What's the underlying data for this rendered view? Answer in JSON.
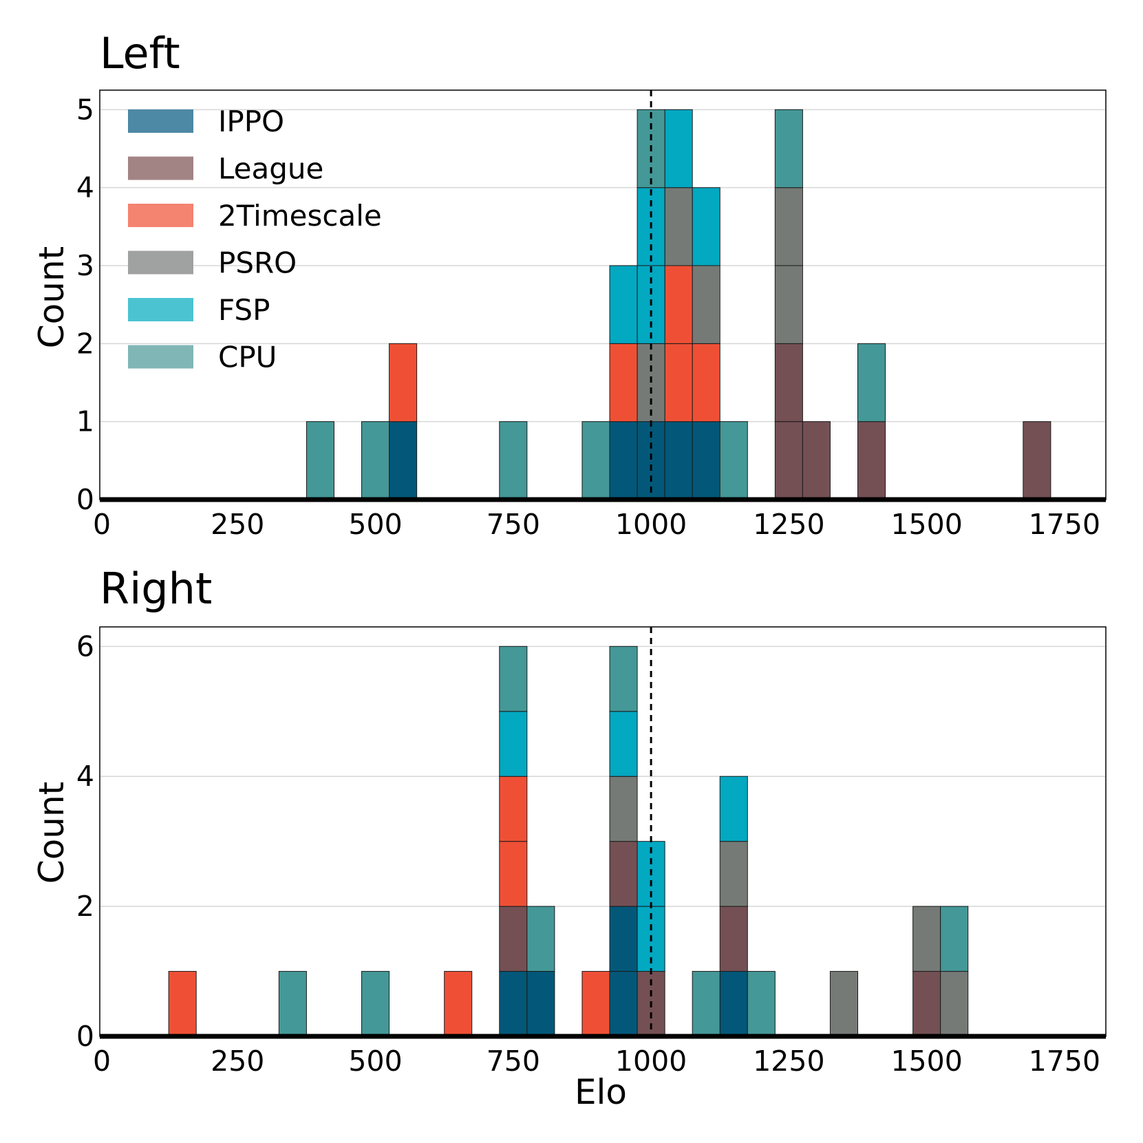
{
  "chart_data": [
    {
      "type": "bar",
      "stacked": true,
      "title": "Left",
      "xlabel": "",
      "ylabel": "Count",
      "xlim": [
        0,
        1825
      ],
      "ylim": [
        0,
        5.25
      ],
      "yticks": [
        0,
        1,
        2,
        3,
        4,
        5
      ],
      "xticks": [
        0,
        250,
        500,
        750,
        1000,
        1250,
        1500,
        1750
      ],
      "reference_line_x": 1000,
      "grid": "horizontal",
      "legend_position": "top-left",
      "bin_width": 50,
      "series": [
        {
          "name": "IPPO",
          "bins": [
            [
              525,
              1
            ],
            [
              925,
              1
            ],
            [
              975,
              1
            ],
            [
              1025,
              1
            ],
            [
              1075,
              1
            ]
          ]
        },
        {
          "name": "League",
          "bins": [
            [
              1225,
              2
            ],
            [
              1275,
              1
            ],
            [
              1375,
              1
            ],
            [
              1675,
              1
            ]
          ]
        },
        {
          "name": "2Timescale",
          "bins": [
            [
              525,
              1
            ],
            [
              925,
              1
            ],
            [
              1025,
              2
            ],
            [
              1075,
              1
            ]
          ]
        },
        {
          "name": "PSRO",
          "bins": [
            [
              975,
              1
            ],
            [
              1025,
              1
            ],
            [
              1075,
              1
            ],
            [
              1225,
              2
            ]
          ]
        },
        {
          "name": "FSP",
          "bins": [
            [
              925,
              1
            ],
            [
              975,
              2
            ],
            [
              1025,
              1
            ],
            [
              1075,
              1
            ]
          ]
        },
        {
          "name": "CPU",
          "bins": [
            [
              375,
              1
            ],
            [
              475,
              1
            ],
            [
              725,
              1
            ],
            [
              875,
              1
            ],
            [
              975,
              1
            ],
            [
              1125,
              1
            ],
            [
              1225,
              1
            ],
            [
              1375,
              1
            ]
          ]
        }
      ]
    },
    {
      "type": "bar",
      "stacked": true,
      "title": "Right",
      "xlabel": "Elo",
      "ylabel": "Count",
      "xlim": [
        0,
        1825
      ],
      "ylim": [
        0,
        6.3
      ],
      "yticks": [
        0,
        2,
        4,
        6
      ],
      "xticks": [
        0,
        250,
        500,
        750,
        1000,
        1250,
        1500,
        1750
      ],
      "reference_line_x": 1000,
      "grid": "horizontal",
      "bin_width": 50,
      "series": [
        {
          "name": "IPPO",
          "bins": [
            [
              725,
              1
            ],
            [
              775,
              1
            ],
            [
              925,
              2
            ],
            [
              1125,
              1
            ]
          ]
        },
        {
          "name": "League",
          "bins": [
            [
              725,
              1
            ],
            [
              925,
              1
            ],
            [
              975,
              1
            ],
            [
              1125,
              1
            ],
            [
              1475,
              1
            ]
          ]
        },
        {
          "name": "2Timescale",
          "bins": [
            [
              125,
              1
            ],
            [
              625,
              1
            ],
            [
              725,
              2
            ],
            [
              875,
              1
            ]
          ]
        },
        {
          "name": "PSRO",
          "bins": [
            [
              925,
              1
            ],
            [
              1125,
              1
            ],
            [
              1325,
              1
            ],
            [
              1475,
              1
            ],
            [
              1525,
              1
            ]
          ]
        },
        {
          "name": "FSP",
          "bins": [
            [
              725,
              1
            ],
            [
              925,
              1
            ],
            [
              975,
              2
            ],
            [
              1125,
              1
            ]
          ]
        },
        {
          "name": "CPU",
          "bins": [
            [
              325,
              1
            ],
            [
              475,
              1
            ],
            [
              725,
              1
            ],
            [
              775,
              1
            ],
            [
              925,
              1
            ],
            [
              1075,
              1
            ],
            [
              1175,
              1
            ],
            [
              1525,
              1
            ]
          ]
        }
      ]
    }
  ],
  "legend": [
    {
      "name": "IPPO",
      "label": "IPPO",
      "color": "#035879"
    },
    {
      "name": "League",
      "label": "League",
      "color": "#745054"
    },
    {
      "name": "2Timescale",
      "label": "2Timescale",
      "color": "#ef5035"
    },
    {
      "name": "PSRO",
      "label": "PSRO",
      "color": "#757a76"
    },
    {
      "name": "FSP",
      "label": "FSP",
      "color": "#03a8c1"
    },
    {
      "name": "CPU",
      "label": "CPU",
      "color": "#449897"
    }
  ],
  "legend_swatch_colors": {
    "IPPO": "#4d88a4",
    "League": "#a38485",
    "2Timescale": "#f48370",
    "PSRO": "#a0a2a1",
    "FSP": "#4cc3d1",
    "CPU": "#80b7b6"
  }
}
